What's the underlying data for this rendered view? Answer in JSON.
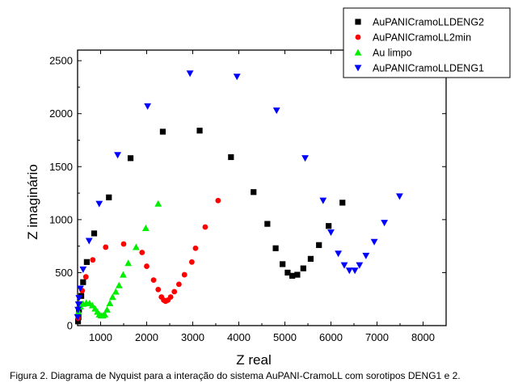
{
  "caption": "Figura 2. Diagrama de Nyquist para a interação do sistema AuPANI-CramoLL com sorotipos DENG1 e 2.",
  "chart_data": {
    "type": "scatter",
    "title": "",
    "xlabel": "Z real",
    "ylabel": "Z imaginário",
    "xlim": [
      500,
      8500
    ],
    "ylim": [
      0,
      2600
    ],
    "xticks": [
      1000,
      2000,
      3000,
      4000,
      5000,
      6000,
      7000,
      8000
    ],
    "yticks": [
      0,
      500,
      1000,
      1500,
      2000,
      2500
    ],
    "grid": false,
    "legend_position": "top-right",
    "series": [
      {
        "name": "AuPANICramoLLDENG2",
        "marker": "square",
        "color": "#000000",
        "points": [
          [
            510,
            40
          ],
          [
            520,
            80
          ],
          [
            530,
            150
          ],
          [
            550,
            200
          ],
          [
            580,
            280
          ],
          [
            620,
            410
          ],
          [
            700,
            600
          ],
          [
            860,
            870
          ],
          [
            1180,
            1210
          ],
          [
            1650,
            1580
          ],
          [
            2350,
            1830
          ],
          [
            3150,
            1840
          ],
          [
            3830,
            1590
          ],
          [
            4320,
            1260
          ],
          [
            4620,
            960
          ],
          [
            4800,
            730
          ],
          [
            4950,
            580
          ],
          [
            5060,
            500
          ],
          [
            5160,
            470
          ],
          [
            5270,
            480
          ],
          [
            5400,
            540
          ],
          [
            5560,
            630
          ],
          [
            5740,
            760
          ],
          [
            5950,
            940
          ],
          [
            6250,
            1160
          ]
        ]
      },
      {
        "name": "AuPANICramoLL2min",
        "marker": "circle",
        "color": "#ff0000",
        "points": [
          [
            510,
            70
          ],
          [
            540,
            180
          ],
          [
            600,
            330
          ],
          [
            680,
            460
          ],
          [
            830,
            620
          ],
          [
            1110,
            740
          ],
          [
            1500,
            770
          ],
          [
            1900,
            690
          ],
          [
            2000,
            560
          ],
          [
            2150,
            430
          ],
          [
            2250,
            340
          ],
          [
            2320,
            270
          ],
          [
            2370,
            240
          ],
          [
            2410,
            230
          ],
          [
            2460,
            240
          ],
          [
            2520,
            270
          ],
          [
            2600,
            320
          ],
          [
            2700,
            390
          ],
          [
            2820,
            480
          ],
          [
            2980,
            600
          ],
          [
            3060,
            730
          ],
          [
            3270,
            930
          ],
          [
            3550,
            1180
          ]
        ]
      },
      {
        "name": "Au limpo",
        "marker": "triangle-up",
        "color": "#00ee00",
        "points": [
          [
            520,
            130
          ],
          [
            560,
            180
          ],
          [
            620,
            205
          ],
          [
            690,
            215
          ],
          [
            760,
            210
          ],
          [
            820,
            190
          ],
          [
            880,
            160
          ],
          [
            930,
            130
          ],
          [
            970,
            105
          ],
          [
            1010,
            95
          ],
          [
            1050,
            95
          ],
          [
            1090,
            105
          ],
          [
            1140,
            150
          ],
          [
            1200,
            210
          ],
          [
            1260,
            270
          ],
          [
            1330,
            320
          ],
          [
            1400,
            380
          ],
          [
            1490,
            480
          ],
          [
            1600,
            590
          ],
          [
            1770,
            740
          ],
          [
            1980,
            920
          ],
          [
            2250,
            1150
          ]
        ]
      },
      {
        "name": "AuPANICramoLLDENG1",
        "marker": "triangle-down",
        "color": "#0000ff",
        "points": [
          [
            500,
            80
          ],
          [
            510,
            150
          ],
          [
            520,
            200
          ],
          [
            530,
            260
          ],
          [
            560,
            350
          ],
          [
            620,
            530
          ],
          [
            750,
            800
          ],
          [
            970,
            1150
          ],
          [
            1370,
            1610
          ],
          [
            2020,
            2070
          ],
          [
            2940,
            2380
          ],
          [
            3960,
            2350
          ],
          [
            4820,
            2030
          ],
          [
            5440,
            1580
          ],
          [
            5830,
            1180
          ],
          [
            6000,
            880
          ],
          [
            6160,
            680
          ],
          [
            6290,
            570
          ],
          [
            6400,
            520
          ],
          [
            6520,
            520
          ],
          [
            6620,
            570
          ],
          [
            6760,
            660
          ],
          [
            6940,
            790
          ],
          [
            7160,
            970
          ],
          [
            7490,
            1220
          ]
        ]
      }
    ]
  }
}
